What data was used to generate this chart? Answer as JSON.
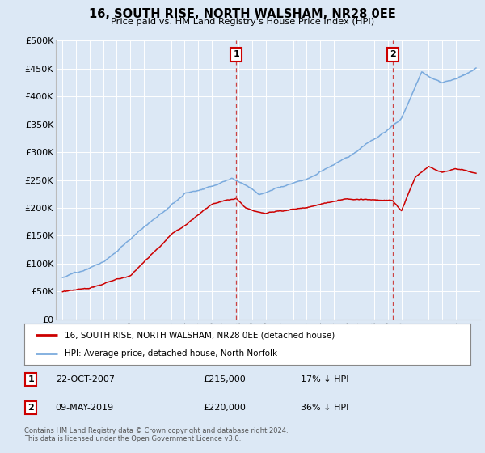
{
  "title": "16, SOUTH RISE, NORTH WALSHAM, NR28 0EE",
  "subtitle": "Price paid vs. HM Land Registry's House Price Index (HPI)",
  "background_color": "#dce8f5",
  "plot_bg_color": "#dce8f5",
  "ylabel_ticks": [
    "£0",
    "£50K",
    "£100K",
    "£150K",
    "£200K",
    "£250K",
    "£300K",
    "£350K",
    "£400K",
    "£450K",
    "£500K"
  ],
  "ytick_values": [
    0,
    50000,
    100000,
    150000,
    200000,
    250000,
    300000,
    350000,
    400000,
    450000,
    500000
  ],
  "ylim": [
    0,
    500000
  ],
  "xlim_start": 1994.5,
  "xlim_end": 2025.8,
  "hpi_color": "#7aaadd",
  "price_color": "#cc0000",
  "dashed_color": "#cc4444",
  "marker1_x": 2007.81,
  "marker1_y": 215000,
  "marker1_label": "1",
  "marker1_date": "22-OCT-2007",
  "marker1_price": "£215,000",
  "marker1_hpi": "17% ↓ HPI",
  "marker2_x": 2019.36,
  "marker2_y": 220000,
  "marker2_label": "2",
  "marker2_date": "09-MAY-2019",
  "marker2_price": "£220,000",
  "marker2_hpi": "36% ↓ HPI",
  "legend_line1": "16, SOUTH RISE, NORTH WALSHAM, NR28 0EE (detached house)",
  "legend_line2": "HPI: Average price, detached house, North Norfolk",
  "footnote": "Contains HM Land Registry data © Crown copyright and database right 2024.\nThis data is licensed under the Open Government Licence v3.0."
}
